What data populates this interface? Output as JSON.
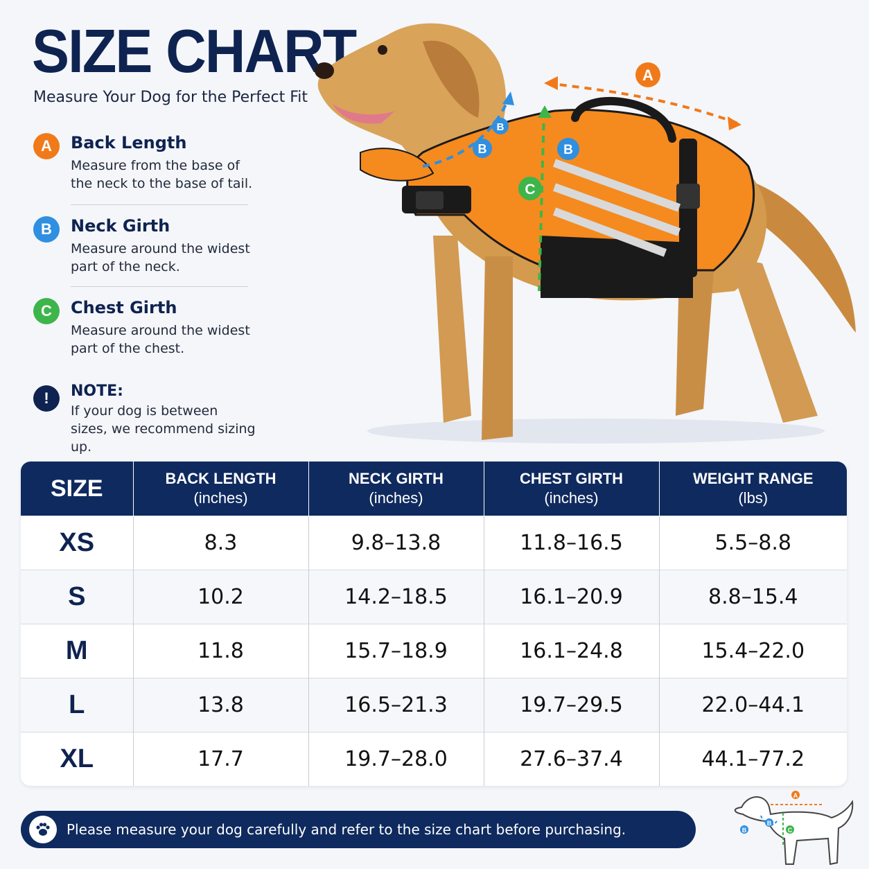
{
  "header": {
    "title": "SIZE CHART",
    "subtitle": "Measure Your Dog for the Perfect Fit"
  },
  "measurements": [
    {
      "letter": "A",
      "title": "Back Length",
      "desc": "Measure from the base of the neck to the base of tail.",
      "color": "#f07a1a"
    },
    {
      "letter": "B",
      "title": "Neck Girth",
      "desc": "Measure around the widest part of the neck.",
      "color": "#2f8fe0"
    },
    {
      "letter": "C",
      "title": "Chest Girth",
      "desc": "Measure around the widest part of the chest.",
      "color": "#3db54a"
    }
  ],
  "note": {
    "icon": "!",
    "title": "NOTE:",
    "desc": "If your dog is between sizes, we recommend sizing up."
  },
  "illustration": {
    "labels": [
      "A",
      "B",
      "B",
      "B",
      "C"
    ]
  },
  "table": {
    "headers": [
      {
        "line1": "SIZE",
        "line2": ""
      },
      {
        "line1": "BACK LENGTH",
        "line2": "(inches)"
      },
      {
        "line1": "NECK GIRTH",
        "line2": "(inches)"
      },
      {
        "line1": "CHEST GIRTH",
        "line2": "(inches)"
      },
      {
        "line1": "WEIGHT RANGE",
        "line2": "(lbs)"
      }
    ],
    "rows": [
      [
        "XS",
        "8.3",
        "9.8–13.8",
        "11.8–16.5",
        "5.5–8.8"
      ],
      [
        "S",
        "10.2",
        "14.2–18.5",
        "16.1–20.9",
        "8.8–15.4"
      ],
      [
        "M",
        "11.8",
        "15.7–18.9",
        "16.1–24.8",
        "15.4–22.0"
      ],
      [
        "L",
        "13.8",
        "16.5–21.3",
        "19.7–29.5",
        "22.0–44.1"
      ],
      [
        "XL",
        "17.7",
        "19.7–28.0",
        "27.6–37.4",
        "44.1–77.2"
      ]
    ]
  },
  "footer": {
    "icon": "paw-icon",
    "text": "Please measure your dog carefully and refer to the size chart before purchasing."
  },
  "mini_diagram": {
    "labels": [
      "A",
      "B",
      "B",
      "C"
    ]
  },
  "colors": {
    "navy": "#0f2a5e",
    "orange": "#f07a1a",
    "blue": "#2f8fe0",
    "green": "#3db54a",
    "vest": "#f58a1f"
  }
}
